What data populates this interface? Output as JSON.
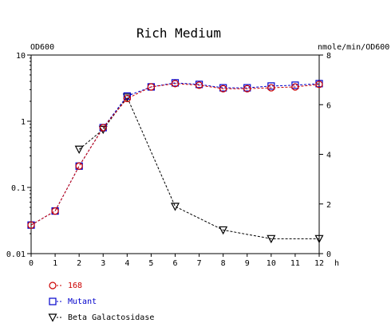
{
  "chart_data": {
    "type": "line",
    "title": "Rich Medium",
    "xlabel": "h",
    "ylabel_left": "OD600",
    "ylabel_right": "nmole/min/OD600",
    "x_ticks": [
      0,
      1,
      2,
      3,
      4,
      5,
      6,
      7,
      8,
      9,
      10,
      11,
      12
    ],
    "x_tick_labels": [
      "0",
      "1",
      "2",
      "3",
      "4",
      "5",
      "6",
      "7",
      "8",
      "9",
      "10",
      "11",
      "12"
    ],
    "xlim": [
      0,
      12
    ],
    "y_left": {
      "scale": "log",
      "lim": [
        0.01,
        10
      ],
      "ticks": [
        0.01,
        0.1,
        1,
        10
      ],
      "tick_labels": [
        "0.01",
        "0.1",
        "1",
        "10"
      ]
    },
    "y_right": {
      "scale": "linear",
      "lim": [
        0,
        8
      ],
      "ticks": [
        0,
        2,
        4,
        6,
        8
      ],
      "tick_labels": [
        "0",
        "2",
        "4",
        "6",
        "8"
      ]
    },
    "grid": false,
    "legend_position": "bottom-left",
    "series": [
      {
        "name": "168",
        "axis": "left",
        "marker": "circle",
        "color": "#cc0000",
        "x": [
          0,
          1,
          2,
          3,
          4,
          5,
          6,
          7,
          8,
          9,
          10,
          11,
          12
        ],
        "y": [
          0.027,
          0.044,
          0.21,
          0.8,
          2.2,
          3.3,
          3.7,
          3.5,
          3.1,
          3.1,
          3.2,
          3.3,
          3.6
        ]
      },
      {
        "name": "Mutant",
        "axis": "left",
        "marker": "square",
        "color": "#0000cc",
        "x": [
          0,
          1,
          2,
          3,
          4,
          5,
          6,
          7,
          8,
          9,
          10,
          11,
          12
        ],
        "y": [
          0.027,
          0.044,
          0.21,
          0.8,
          2.4,
          3.3,
          3.8,
          3.6,
          3.2,
          3.2,
          3.4,
          3.5,
          3.7
        ]
      },
      {
        "name": "Beta Galactosidase",
        "axis": "right",
        "marker": "triangle-down",
        "color": "#000000",
        "x": [
          2,
          3,
          4,
          6,
          8,
          10,
          12
        ],
        "y": [
          4.2,
          5.0,
          6.3,
          1.9,
          0.95,
          0.6,
          0.6
        ]
      }
    ]
  }
}
